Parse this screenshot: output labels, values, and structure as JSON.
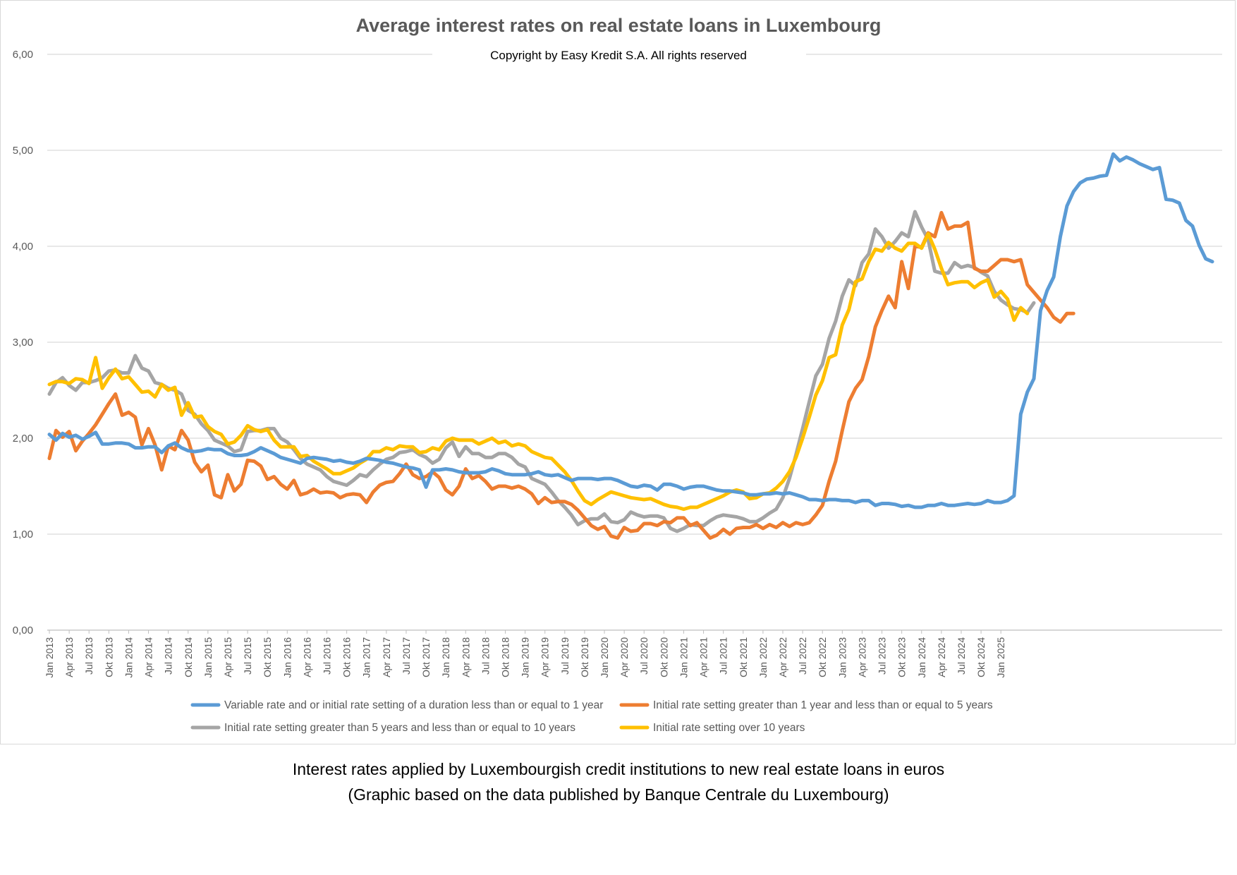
{
  "caption": {
    "line1": "Interest rates applied by Luxembourgish credit institutions to new real estate loans in euros",
    "line2": "(Graphic based on the data published by Banque Centrale du Luxembourg)"
  },
  "chart_data": {
    "type": "line",
    "title": "Average interest rates on real estate loans in Luxembourg",
    "subtitle": "Copyright by Easy Kredit S.A. All rights reserved",
    "xlabel": "",
    "ylabel": "",
    "ylim": [
      0,
      6
    ],
    "yticks": [
      "0,00",
      "1,00",
      "2,00",
      "3,00",
      "4,00",
      "5,00",
      "6,00"
    ],
    "grid": true,
    "legend_position": "bottom",
    "x_tick_labels": [
      "Jan 2013",
      "Apr 2013",
      "Jul 2013",
      "Okt 2013",
      "Jan 2014",
      "Apr 2014",
      "Jul 2014",
      "Okt 2014",
      "Jan 2015",
      "Apr 2015",
      "Jul 2015",
      "Okt 2015",
      "Jan 2016",
      "Apr 2016",
      "Jul 2016",
      "Okt 2016",
      "Jan 2017",
      "Apr 2017",
      "Jul 2017",
      "Okt 2017",
      "Jan 2018",
      "Apr 2018",
      "Jul 2018",
      "Okt 2018",
      "Jan 2019",
      "Apr 2019",
      "Jul 2019",
      "Okt 2019",
      "Jan 2020",
      "Apr 2020",
      "Jul 2020",
      "Okt 2020",
      "Jan 2021",
      "Apr 2021",
      "Jul 2021",
      "Okt 2021",
      "Jan 2022",
      "Apr 2022",
      "Jul 2022",
      "Okt 2022",
      "Jan 2023",
      "Apr 2023",
      "Jul 2023",
      "Okt 2023",
      "Jan 2024",
      "Apr 2024",
      "Jul 2024",
      "Okt 2024",
      "Jan 2025"
    ],
    "x_start": "Jan 2013",
    "series": [
      {
        "name": "Variable rate and or initial rate setting of a duration less than or equal to 1 year",
        "color": "#5b9bd5",
        "values": [
          2.04,
          1.98,
          2.05,
          2.01,
          2.03,
          1.99,
          2.02,
          2.06,
          1.94,
          1.94,
          1.95,
          1.95,
          1.94,
          1.9,
          1.9,
          1.91,
          1.91,
          1.85,
          1.92,
          1.95,
          1.9,
          1.87,
          1.86,
          1.87,
          1.89,
          1.88,
          1.88,
          1.84,
          1.82,
          1.82,
          1.83,
          1.86,
          1.9,
          1.87,
          1.84,
          1.8,
          1.78,
          1.76,
          1.74,
          1.79,
          1.8,
          1.79,
          1.78,
          1.76,
          1.77,
          1.75,
          1.74,
          1.76,
          1.79,
          1.78,
          1.77,
          1.75,
          1.74,
          1.72,
          1.7,
          1.69,
          1.67,
          1.49,
          1.67,
          1.67,
          1.68,
          1.67,
          1.65,
          1.64,
          1.64,
          1.64,
          1.65,
          1.68,
          1.66,
          1.63,
          1.62,
          1.62,
          1.62,
          1.63,
          1.65,
          1.62,
          1.61,
          1.62,
          1.59,
          1.56,
          1.58,
          1.58,
          1.58,
          1.57,
          1.58,
          1.58,
          1.56,
          1.53,
          1.5,
          1.49,
          1.51,
          1.5,
          1.46,
          1.52,
          1.52,
          1.5,
          1.47,
          1.49,
          1.5,
          1.5,
          1.48,
          1.46,
          1.45,
          1.45,
          1.44,
          1.43,
          1.41,
          1.41,
          1.42,
          1.42,
          1.43,
          1.42,
          1.43,
          1.41,
          1.39,
          1.36,
          1.36,
          1.35,
          1.36,
          1.36,
          1.35,
          1.35,
          1.33,
          1.35,
          1.35,
          1.3,
          1.32,
          1.32,
          1.31,
          1.29,
          1.3,
          1.28,
          1.28,
          1.3,
          1.3,
          1.32,
          1.3,
          1.3,
          1.31,
          1.32,
          1.31,
          1.32,
          1.35,
          1.33,
          1.33,
          1.35,
          1.4,
          2.25,
          2.48,
          2.62,
          3.33,
          3.54,
          3.68,
          4.1,
          4.42,
          4.57,
          4.66,
          4.7,
          4.71,
          4.73,
          4.74,
          4.96,
          4.89,
          4.93,
          4.9,
          4.86,
          4.83,
          4.8,
          4.82,
          4.49,
          4.48,
          4.45,
          4.27,
          4.21,
          4.01,
          3.87,
          3.84
        ]
      },
      {
        "name": "Initial rate setting greater than 1 year and less than or equal to 5 years",
        "color": "#ed7d31",
        "values": [
          1.79,
          2.08,
          2.01,
          2.07,
          1.87,
          1.97,
          2.05,
          2.14,
          2.25,
          2.36,
          2.46,
          2.24,
          2.27,
          2.22,
          1.93,
          2.1,
          1.93,
          1.67,
          1.92,
          1.88,
          2.08,
          1.98,
          1.75,
          1.65,
          1.72,
          1.41,
          1.38,
          1.62,
          1.45,
          1.52,
          1.77,
          1.76,
          1.71,
          1.57,
          1.6,
          1.52,
          1.47,
          1.56,
          1.41,
          1.43,
          1.47,
          1.43,
          1.44,
          1.43,
          1.38,
          1.41,
          1.42,
          1.41,
          1.33,
          1.44,
          1.51,
          1.54,
          1.55,
          1.63,
          1.73,
          1.62,
          1.58,
          1.6,
          1.65,
          1.59,
          1.46,
          1.41,
          1.5,
          1.68,
          1.58,
          1.61,
          1.55,
          1.47,
          1.5,
          1.5,
          1.48,
          1.5,
          1.47,
          1.42,
          1.32,
          1.38,
          1.33,
          1.34,
          1.34,
          1.31,
          1.25,
          1.17,
          1.09,
          1.05,
          1.08,
          0.98,
          0.96,
          1.07,
          1.03,
          1.04,
          1.11,
          1.11,
          1.09,
          1.13,
          1.12,
          1.17,
          1.17,
          1.09,
          1.12,
          1.04,
          0.96,
          0.99,
          1.05,
          1.0,
          1.06,
          1.07,
          1.07,
          1.1,
          1.06,
          1.1,
          1.07,
          1.12,
          1.08,
          1.12,
          1.1,
          1.12,
          1.2,
          1.3,
          1.55,
          1.76,
          2.08,
          2.38,
          2.52,
          2.61,
          2.85,
          3.16,
          3.33,
          3.48,
          3.36,
          3.84,
          3.56,
          4.0,
          3.99,
          4.14,
          4.1,
          4.35,
          4.18,
          4.21,
          4.21,
          4.25,
          3.77,
          3.74,
          3.74,
          3.8,
          3.86,
          3.86,
          3.84,
          3.86,
          3.6,
          3.52,
          3.44,
          3.36,
          3.26,
          3.21,
          3.3,
          3.3
        ]
      },
      {
        "name": "Initial rate setting greater than 5 years and less than or equal to 10 years",
        "color": "#a5a5a5",
        "values": [
          2.46,
          2.58,
          2.63,
          2.55,
          2.5,
          2.58,
          2.58,
          2.6,
          2.63,
          2.7,
          2.71,
          2.68,
          2.68,
          2.86,
          2.73,
          2.7,
          2.58,
          2.56,
          2.52,
          2.5,
          2.46,
          2.29,
          2.25,
          2.15,
          2.08,
          1.98,
          1.95,
          1.92,
          1.86,
          1.88,
          2.07,
          2.08,
          2.08,
          2.1,
          2.1,
          2.0,
          1.96,
          1.88,
          1.79,
          1.73,
          1.7,
          1.67,
          1.6,
          1.55,
          1.53,
          1.51,
          1.56,
          1.62,
          1.6,
          1.67,
          1.73,
          1.78,
          1.8,
          1.85,
          1.86,
          1.88,
          1.83,
          1.8,
          1.74,
          1.78,
          1.9,
          1.96,
          1.81,
          1.91,
          1.84,
          1.84,
          1.8,
          1.8,
          1.84,
          1.84,
          1.8,
          1.73,
          1.7,
          1.58,
          1.55,
          1.52,
          1.44,
          1.35,
          1.28,
          1.2,
          1.1,
          1.14,
          1.16,
          1.16,
          1.21,
          1.13,
          1.12,
          1.15,
          1.23,
          1.2,
          1.18,
          1.19,
          1.19,
          1.17,
          1.06,
          1.03,
          1.06,
          1.1,
          1.09,
          1.09,
          1.14,
          1.18,
          1.2,
          1.19,
          1.18,
          1.16,
          1.13,
          1.13,
          1.17,
          1.22,
          1.26,
          1.38,
          1.58,
          1.83,
          2.1,
          2.38,
          2.65,
          2.77,
          3.04,
          3.22,
          3.48,
          3.65,
          3.59,
          3.83,
          3.92,
          4.18,
          4.1,
          3.98,
          4.05,
          4.14,
          4.1,
          4.36,
          4.2,
          4.07,
          3.74,
          3.72,
          3.72,
          3.83,
          3.78,
          3.8,
          3.78,
          3.73,
          3.69,
          3.53,
          3.44,
          3.39,
          3.35,
          3.34,
          3.31,
          3.41
        ]
      },
      {
        "name": "Initial rate setting over 10 years",
        "color": "#ffc000",
        "values": [
          2.56,
          2.59,
          2.59,
          2.57,
          2.62,
          2.61,
          2.57,
          2.84,
          2.52,
          2.63,
          2.72,
          2.62,
          2.64,
          2.56,
          2.48,
          2.49,
          2.43,
          2.56,
          2.5,
          2.53,
          2.24,
          2.37,
          2.22,
          2.23,
          2.12,
          2.07,
          2.04,
          1.94,
          1.96,
          2.03,
          2.13,
          2.09,
          2.07,
          2.09,
          1.98,
          1.91,
          1.91,
          1.91,
          1.81,
          1.82,
          1.76,
          1.72,
          1.68,
          1.63,
          1.63,
          1.66,
          1.69,
          1.74,
          1.78,
          1.86,
          1.86,
          1.9,
          1.88,
          1.92,
          1.91,
          1.91,
          1.85,
          1.86,
          1.9,
          1.88,
          1.97,
          2.0,
          1.98,
          1.98,
          1.98,
          1.94,
          1.97,
          2.0,
          1.95,
          1.97,
          1.92,
          1.94,
          1.92,
          1.86,
          1.83,
          1.8,
          1.79,
          1.72,
          1.65,
          1.56,
          1.45,
          1.35,
          1.31,
          1.36,
          1.4,
          1.44,
          1.42,
          1.4,
          1.38,
          1.37,
          1.36,
          1.37,
          1.34,
          1.31,
          1.29,
          1.28,
          1.26,
          1.28,
          1.28,
          1.31,
          1.34,
          1.37,
          1.4,
          1.44,
          1.46,
          1.44,
          1.37,
          1.38,
          1.42,
          1.43,
          1.48,
          1.55,
          1.65,
          1.8,
          2.0,
          2.22,
          2.45,
          2.6,
          2.84,
          2.87,
          3.18,
          3.34,
          3.63,
          3.66,
          3.84,
          3.97,
          3.95,
          4.04,
          3.98,
          3.95,
          4.03,
          4.03,
          3.98,
          4.13,
          3.97,
          3.77,
          3.6,
          3.62,
          3.63,
          3.63,
          3.57,
          3.62,
          3.65,
          3.47,
          3.53,
          3.45,
          3.23,
          3.36,
          3.3
        ]
      }
    ]
  }
}
